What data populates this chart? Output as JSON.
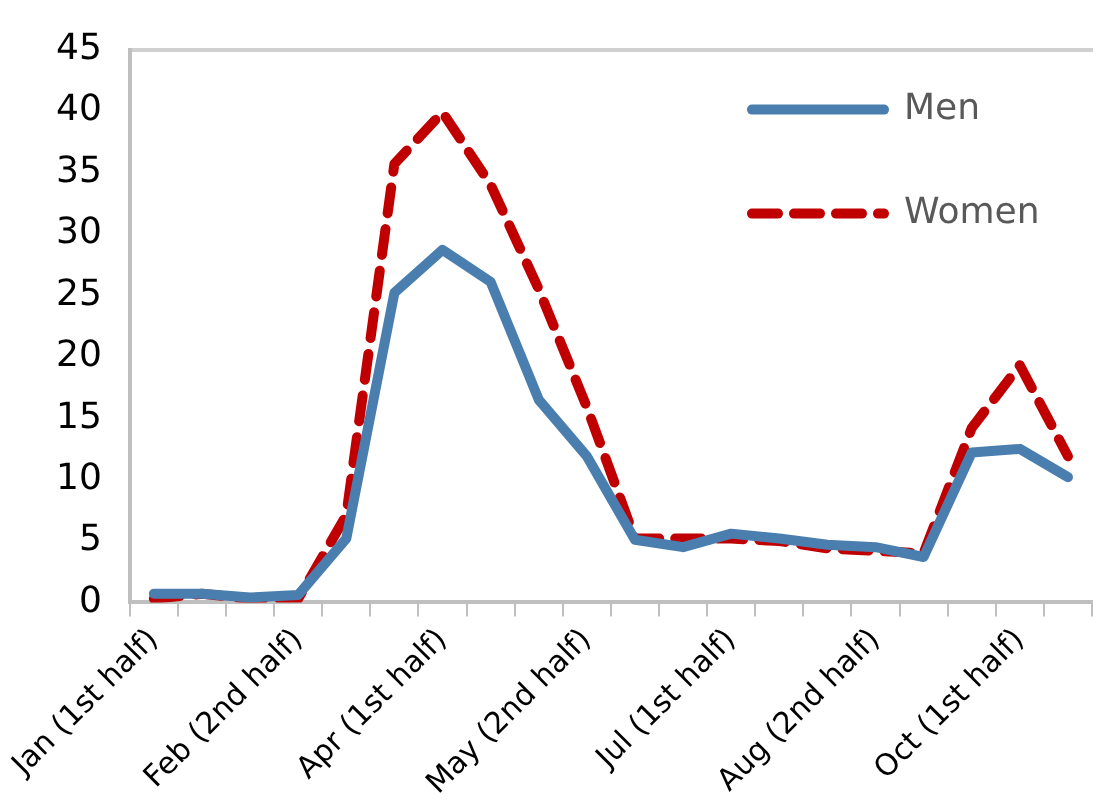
{
  "chart_data": {
    "type": "line",
    "categories": [
      "Jan (1st half)",
      null,
      null,
      "Feb (2nd half)",
      null,
      null,
      "Apr (1st half)",
      null,
      null,
      "May (2nd half)",
      null,
      null,
      "Jul (1st half)",
      null,
      null,
      "Aug (2nd half)",
      null,
      null,
      "Oct (1st half)",
      null
    ],
    "series": [
      {
        "name": "Men",
        "color": "#4a7eaf",
        "line_style": "solid",
        "values": [
          0.7,
          0.7,
          0.4,
          0.6,
          5.2,
          25.2,
          28.7,
          26.1,
          16.5,
          11.9,
          5.1,
          4.5,
          5.6,
          5.2,
          4.7,
          4.5,
          3.7,
          12.2,
          12.5,
          10.2
        ]
      },
      {
        "name": "Women",
        "color": "#c00000",
        "line_style": "dashed",
        "values": [
          0.3,
          0.7,
          0.3,
          0.3,
          7.1,
          35.7,
          39.9,
          34,
          25.5,
          15.9,
          5.2,
          5.2,
          5.2,
          5,
          4.4,
          4.2,
          4,
          14.2,
          19.3,
          11.9
        ]
      }
    ],
    "ylim": [
      0,
      45
    ],
    "yticks": [
      0,
      5,
      10,
      15,
      20,
      25,
      30,
      35,
      40,
      45
    ],
    "grid": false,
    "legend": "top right",
    "marker": "none"
  }
}
